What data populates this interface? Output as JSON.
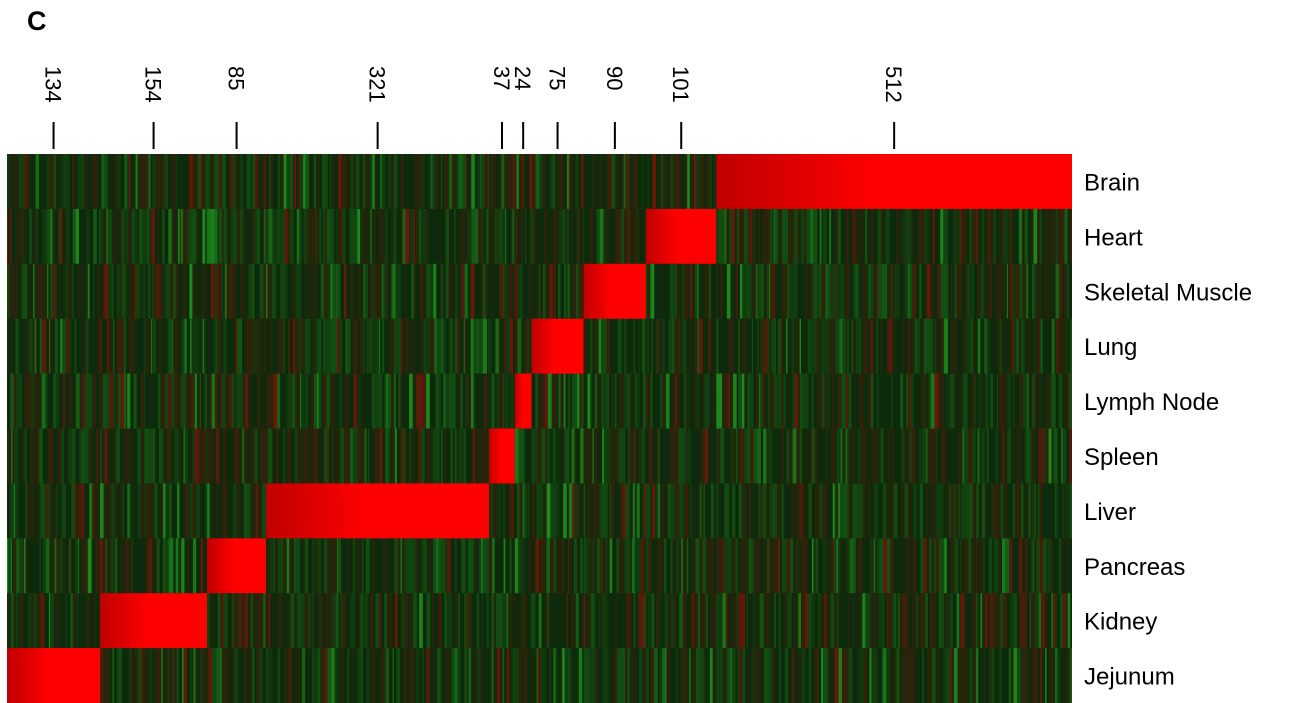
{
  "panel_label": "C",
  "chart_data": {
    "type": "heatmap",
    "title": "",
    "xlabel": "",
    "ylabel": "",
    "rows": [
      "Brain",
      "Heart",
      "Skeletal Muscle",
      "Lung",
      "Lymph Node",
      "Spleen",
      "Liver",
      "Pancreas",
      "Kidney",
      "Jejunum"
    ],
    "column_groups": [
      {
        "count": 134,
        "high_in": "Jejunum"
      },
      {
        "count": 154,
        "high_in": "Kidney"
      },
      {
        "count": 85,
        "high_in": "Pancreas"
      },
      {
        "count": 321,
        "high_in": "Liver"
      },
      {
        "count": 37,
        "high_in": "Spleen"
      },
      {
        "count": 24,
        "high_in": "Lymph Node"
      },
      {
        "count": 75,
        "high_in": "Lung"
      },
      {
        "count": 90,
        "high_in": "Skeletal Muscle"
      },
      {
        "count": 101,
        "high_in": "Heart"
      },
      {
        "count": 512,
        "high_in": "Brain"
      }
    ],
    "colors": {
      "high": "#ff0000",
      "mid": "#0e2a0c",
      "low": "#1e8c1e"
    }
  }
}
